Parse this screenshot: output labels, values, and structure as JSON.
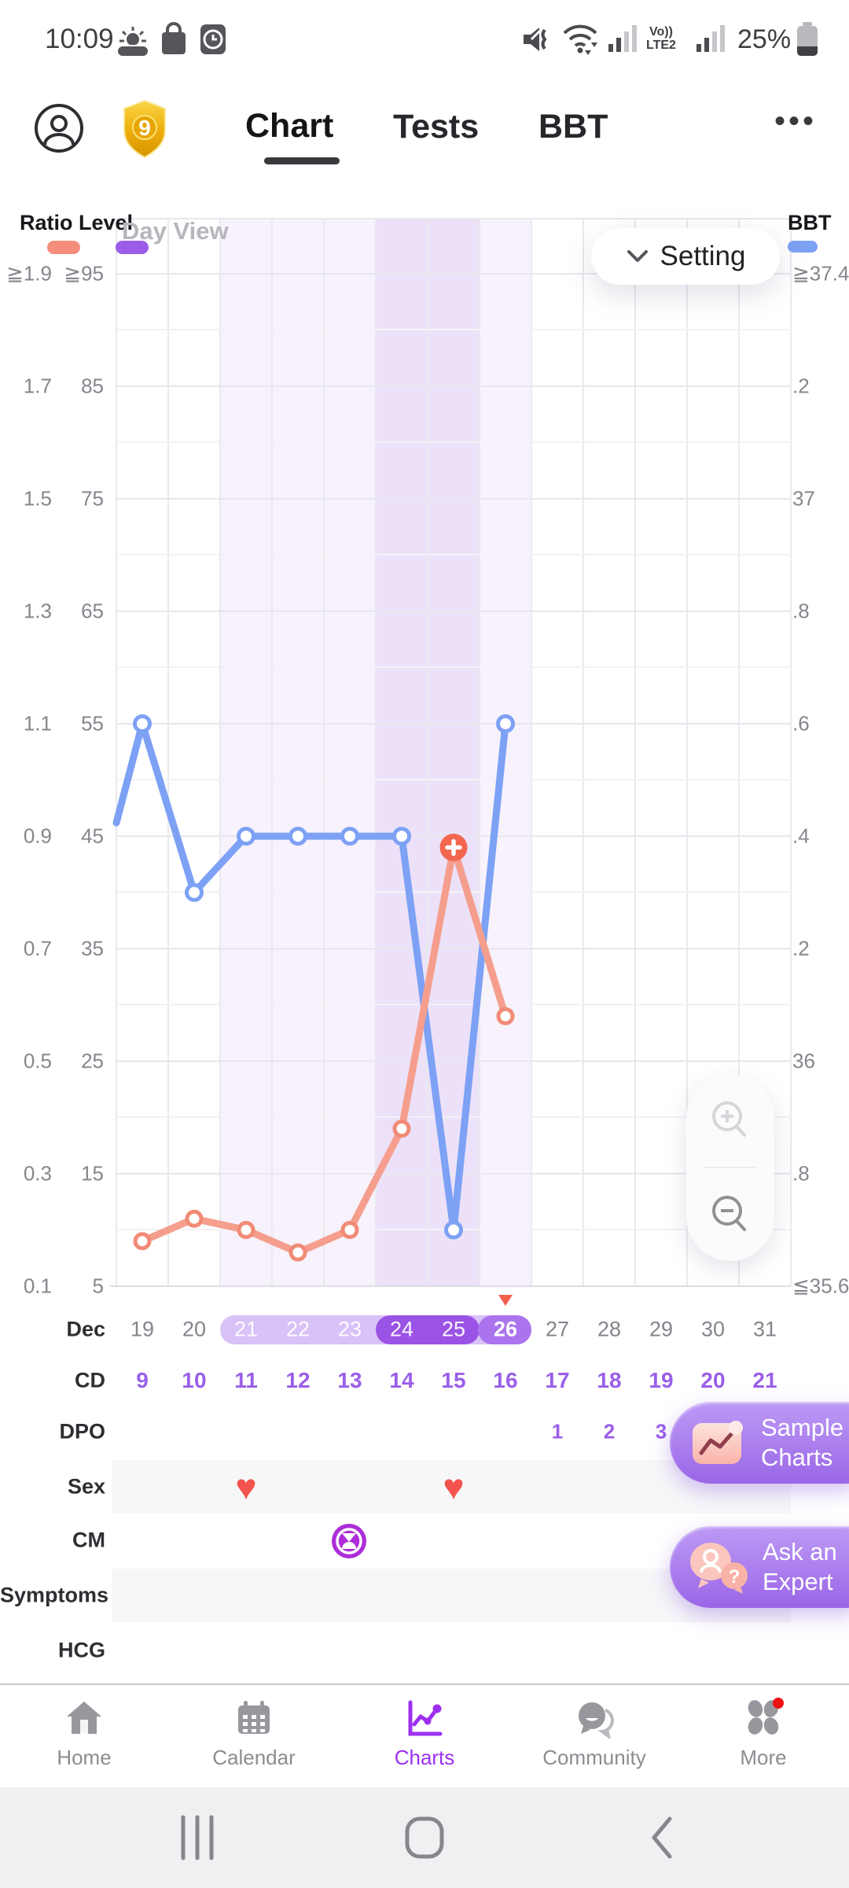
{
  "status_bar": {
    "time": "10:09",
    "volte_line1": "Vo))",
    "volte_line2": "LTE2",
    "battery_percent": "25%"
  },
  "header": {
    "badge_number": "9",
    "tabs": [
      {
        "label": "Chart",
        "active": true
      },
      {
        "label": "Tests",
        "active": false
      },
      {
        "label": "BBT",
        "active": false
      }
    ],
    "menu_icon": "more-options"
  },
  "chart": {
    "view_label": "Day View",
    "setting_label": "Setting",
    "legend_left_title": "Ratio Level",
    "legend_right_title": "BBT",
    "axis_ratio": [
      "≧1.9",
      "1.7",
      "1.5",
      "1.3",
      "1.1",
      "0.9",
      "0.7",
      "0.5",
      "0.3",
      "0.1"
    ],
    "axis_level": [
      "≧95",
      "85",
      "75",
      "65",
      "55",
      "45",
      "35",
      "25",
      "15",
      "5"
    ],
    "axis_bbt": [
      "≧37.4",
      ".2",
      "37",
      ".8",
      ".6",
      ".4",
      ".2",
      "36",
      ".8",
      "≦35.6"
    ],
    "colors": {
      "ratio_line": "#f59e8d",
      "level_swatch": "#9b5ce8",
      "bbt_line": "#7da1f4",
      "positive_marker": "#f3664f",
      "band_light": "#f7f2fc",
      "band_dark": "#ece1f8"
    }
  },
  "chart_data": {
    "type": "line",
    "title": "Ovulation / BBT day-view chart, Dec 19-31",
    "month": "Dec",
    "x_dates": [
      19,
      20,
      21,
      22,
      23,
      24,
      25,
      26,
      27,
      28,
      29,
      30,
      31
    ],
    "series": [
      {
        "name": "BBT",
        "axis": "right",
        "color": "#7da1f4",
        "x": [
          19,
          20,
          21,
          22,
          23,
          24,
          25,
          26
        ],
        "values": [
          36.6,
          36.3,
          36.4,
          36.4,
          36.4,
          36.4,
          35.7,
          36.6
        ]
      },
      {
        "name": "Ratio",
        "axis": "left",
        "color": "#f59e8d",
        "x": [
          19,
          20,
          21,
          22,
          23,
          24,
          25,
          26
        ],
        "values": [
          0.18,
          0.22,
          0.2,
          0.16,
          0.2,
          0.38,
          0.88,
          0.58
        ],
        "level_values": [
          9,
          11,
          10,
          8,
          10,
          19,
          44,
          29
        ],
        "positive_marker_x": 25
      }
    ],
    "left_axis": {
      "label": "Ratio Level",
      "ratio_range": [
        0.1,
        1.9
      ],
      "level_range": [
        5,
        95
      ]
    },
    "right_axis": {
      "label": "BBT",
      "range": [
        35.6,
        37.4
      ]
    },
    "shaded_days": {
      "light": [
        [
          21,
          23
        ],
        [
          26,
          26
        ]
      ],
      "dark": [
        [
          24,
          25
        ]
      ]
    },
    "grid": true,
    "legend_position": "top"
  },
  "rows": {
    "month_label": "Dec",
    "dates": [
      "19",
      "20",
      "21",
      "22",
      "23",
      "24",
      "25",
      "26",
      "27",
      "28",
      "29",
      "30",
      "31"
    ],
    "cd_label": "CD",
    "cd": [
      "9",
      "10",
      "11",
      "12",
      "13",
      "14",
      "15",
      "16",
      "17",
      "18",
      "19",
      "20",
      "21"
    ],
    "dpo_label": "DPO",
    "dpo": [
      "1",
      "2",
      "3"
    ],
    "sex_label": "Sex",
    "sex_heart_dates": [
      21,
      25
    ],
    "cm_label": "CM",
    "cm_icon_date": 23,
    "symptoms_label": "Symptoms",
    "hcg_label": "HCG"
  },
  "buttons": {
    "sample": {
      "line1": "Sample",
      "line2": "Charts"
    },
    "ask": {
      "line1": "Ask an",
      "line2": "Expert"
    }
  },
  "nav": {
    "items": [
      {
        "label": "Home",
        "active": false
      },
      {
        "label": "Calendar",
        "active": false
      },
      {
        "label": "Charts",
        "active": true
      },
      {
        "label": "Community",
        "active": false
      },
      {
        "label": "More",
        "active": false,
        "badge": true
      }
    ]
  }
}
